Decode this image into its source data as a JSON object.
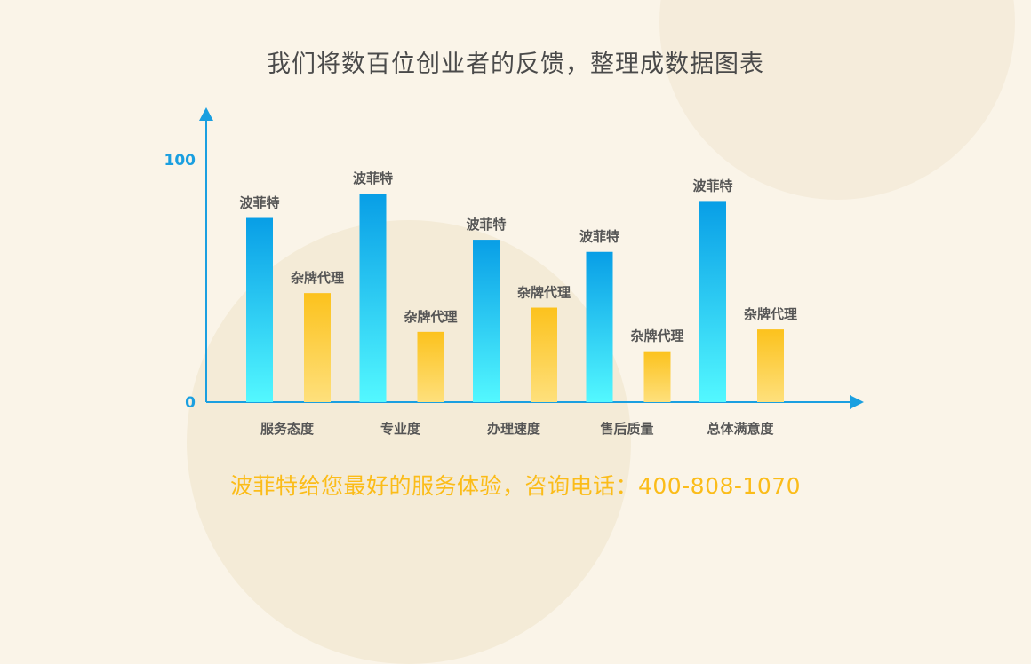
{
  "title": "我们将数百位创业者的反馈，整理成数据图表",
  "footer": "波菲特给您最好的服务体验，咨询电话：400-808-1070",
  "chart_data": {
    "type": "bar",
    "categories": [
      "服务态度",
      "专业度",
      "办理速度",
      "售后质量",
      "总体满意度"
    ],
    "series": [
      {
        "name": "波菲特",
        "values": [
          76,
          86,
          67,
          62,
          83
        ],
        "color_top": "#089ee6",
        "color_bottom": "#53f8ff"
      },
      {
        "name": "杂牌代理",
        "values": [
          45,
          29,
          39,
          21,
          30
        ],
        "color_top": "#fcc21d",
        "color_bottom": "#fee07c"
      }
    ],
    "yticks": [
      0,
      100
    ],
    "ylim": [
      0,
      100
    ],
    "axis_color": "#1a9fe0"
  }
}
